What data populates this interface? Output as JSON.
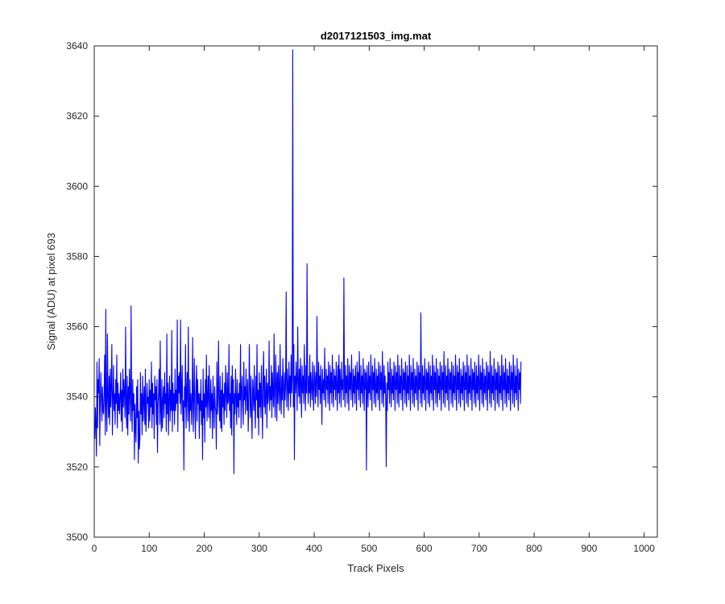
{
  "chart_data": {
    "type": "line",
    "title": "d2017121503_img.mat",
    "xlabel": "Track Pixels",
    "ylabel": "Signal (ADU) at pixel 693",
    "xlim": [
      0,
      1024
    ],
    "ylim": [
      3500,
      3640
    ],
    "xticks": [
      0,
      100,
      200,
      300,
      400,
      500,
      600,
      700,
      800,
      900,
      1000
    ],
    "xtick_labels": [
      "0",
      "100",
      "200",
      "300",
      "400",
      "500",
      "600",
      "700",
      "800",
      "900",
      "1000"
    ],
    "yticks": [
      3500,
      3520,
      3540,
      3560,
      3580,
      3600,
      3620,
      3640
    ],
    "ytick_labels": [
      "3500",
      "3520",
      "3540",
      "3560",
      "3580",
      "3600",
      "3620",
      "3640"
    ],
    "grid": false,
    "series": [
      {
        "color": "#0000ff",
        "x_step": 1,
        "x_start": 1,
        "values": [
          3528,
          3537,
          3532,
          3523,
          3550,
          3531,
          3545,
          3541,
          3551,
          3526,
          3538,
          3547,
          3540,
          3533,
          3543,
          3536,
          3535,
          3541,
          3552,
          3529,
          3565,
          3537,
          3530,
          3558,
          3540,
          3534,
          3546,
          3532,
          3548,
          3537,
          3543,
          3555,
          3529,
          3539,
          3549,
          3536,
          3541,
          3532,
          3545,
          3538,
          3552,
          3531,
          3544,
          3536,
          3541,
          3535,
          3540,
          3547,
          3533,
          3542,
          3530,
          3548,
          3537,
          3545,
          3541,
          3534,
          3560,
          3538,
          3531,
          3546,
          3529,
          3543,
          3535,
          3548,
          3540,
          3533,
          3566,
          3539,
          3530,
          3545,
          3536,
          3541,
          3522,
          3538,
          3531,
          3527,
          3543,
          3534,
          3545,
          3521,
          3536,
          3525,
          3528,
          3547,
          3535,
          3541,
          3529,
          3546,
          3533,
          3539,
          3543,
          3532,
          3548,
          3530,
          3536,
          3544,
          3538,
          3540,
          3531,
          3545,
          3533,
          3542,
          3537,
          3550,
          3531,
          3544,
          3535,
          3541,
          3528,
          3546,
          3539,
          3543,
          3532,
          3545,
          3524,
          3538,
          3541,
          3548,
          3532,
          3556,
          3536,
          3530,
          3545,
          3531,
          3539,
          3543,
          3534,
          3547,
          3538,
          3541,
          3530,
          3558,
          3535,
          3544,
          3529,
          3540,
          3546,
          3533,
          3542,
          3536,
          3559,
          3530,
          3544,
          3536,
          3541,
          3532,
          3548,
          3536,
          3542,
          3538,
          3562,
          3530,
          3546,
          3541,
          3547,
          3538,
          3562,
          3535,
          3541,
          3549,
          3533,
          3539,
          3519,
          3543,
          3537,
          3555,
          3531,
          3541,
          3547,
          3533,
          3560,
          3537,
          3530,
          3545,
          3536,
          3541,
          3532,
          3539,
          3557,
          3530,
          3538,
          3551,
          3536,
          3528,
          3542,
          3549,
          3533,
          3545,
          3538,
          3541,
          3528,
          3541,
          3536,
          3545,
          3532,
          3539,
          3522,
          3548,
          3534,
          3541,
          3527,
          3545,
          3537,
          3552,
          3533,
          3540,
          3546,
          3534,
          3549,
          3539,
          3531,
          3545,
          3536,
          3541,
          3528,
          3546,
          3538,
          3531,
          3543,
          3537,
          3536,
          3525,
          3550,
          3535,
          3540,
          3556,
          3538,
          3533,
          3546,
          3531,
          3542,
          3530,
          3547,
          3537,
          3541,
          3532,
          3544,
          3536,
          3549,
          3541,
          3534,
          3547,
          3538,
          3539,
          3555,
          3536,
          3541,
          3531,
          3546,
          3529,
          3549,
          3538,
          3545,
          3518,
          3541,
          3535,
          3548,
          3540,
          3532,
          3545,
          3537,
          3541,
          3534,
          3544,
          3539,
          3555,
          3531,
          3542,
          3546,
          3537,
          3532,
          3550,
          3539,
          3543,
          3535,
          3548,
          3541,
          3536,
          3545,
          3530,
          3538,
          3555,
          3542,
          3534,
          3546,
          3536,
          3528,
          3545,
          3541,
          3536,
          3549,
          3538,
          3531,
          3546,
          3539,
          3555,
          3534,
          3542,
          3529,
          3547,
          3537,
          3544,
          3534,
          3549,
          3540,
          3528,
          3545,
          3553,
          3537,
          3546,
          3535,
          3541,
          3548,
          3531,
          3544,
          3538,
          3541,
          3556,
          3536,
          3543,
          3539,
          3549,
          3534,
          3547,
          3541,
          3537,
          3558,
          3540,
          3534,
          3552,
          3545,
          3533,
          3547,
          3538,
          3549,
          3542,
          3536,
          3555,
          3541,
          3535,
          3546,
          3539,
          3551,
          3542,
          3534,
          3547,
          3539,
          3544,
          3570,
          3537,
          3548,
          3543,
          3536,
          3550,
          3541,
          3546,
          3537,
          3552,
          3541,
          3545,
          3639,
          3537,
          3555,
          3522,
          3546,
          3541,
          3550,
          3544,
          3536,
          3560,
          3545,
          3540,
          3548,
          3538,
          3551,
          3544,
          3534,
          3549,
          3541,
          3546,
          3538,
          3555,
          3543,
          3536,
          3549,
          3541,
          3578,
          3544,
          3538,
          3546,
          3541,
          3552,
          3537,
          3547,
          3543,
          3539,
          3550,
          3542,
          3536,
          3549,
          3545,
          3538,
          3547,
          3540,
          3563,
          3544,
          3537,
          3550,
          3542,
          3546,
          3538,
          3549,
          3543,
          3532,
          3548,
          3541,
          3545,
          3539,
          3554,
          3543,
          3537,
          3548,
          3542,
          3546,
          3538,
          3550,
          3544,
          3536,
          3549,
          3541,
          3547,
          3538,
          3552,
          3543,
          3537,
          3548,
          3542,
          3546,
          3539,
          3550,
          3543,
          3536,
          3549,
          3541,
          3552,
          3538,
          3548,
          3544,
          3537,
          3550,
          3542,
          3545,
          3539,
          3574,
          3543,
          3537,
          3549,
          3541,
          3546,
          3538,
          3551,
          3544,
          3536,
          3549,
          3542,
          3547,
          3539,
          3552,
          3543,
          3537,
          3548,
          3541,
          3546,
          3538,
          3549,
          3544,
          3536,
          3550,
          3542,
          3547,
          3539,
          3553,
          3543,
          3537,
          3549,
          3541,
          3546,
          3538,
          3551,
          3544,
          3536,
          3548,
          3542,
          3547,
          3519,
          3549,
          3543,
          3537,
          3550,
          3541,
          3546,
          3539,
          3552,
          3544,
          3536,
          3549,
          3542,
          3547,
          3538,
          3551,
          3543,
          3537,
          3548,
          3541,
          3546,
          3539,
          3550,
          3544,
          3536,
          3549,
          3542,
          3547,
          3538,
          3553,
          3543,
          3537,
          3549,
          3541,
          3546,
          3539,
          3520,
          3544,
          3536,
          3550,
          3542,
          3547,
          3538,
          3551,
          3543,
          3537,
          3548,
          3541,
          3546,
          3539,
          3550,
          3544,
          3536,
          3549,
          3542,
          3547,
          3538,
          3552,
          3543,
          3537,
          3549,
          3541,
          3546,
          3539,
          3551,
          3544,
          3536,
          3548,
          3542,
          3547,
          3538,
          3550,
          3543,
          3537,
          3549,
          3541,
          3546,
          3539,
          3552,
          3544,
          3536,
          3549,
          3542,
          3547,
          3538,
          3551,
          3543,
          3537,
          3548,
          3541,
          3546,
          3539,
          3550,
          3544,
          3536,
          3549,
          3542,
          3547,
          3538,
          3564,
          3543,
          3537,
          3549,
          3541,
          3546,
          3539,
          3551,
          3544,
          3536,
          3548,
          3542,
          3547,
          3538,
          3550,
          3543,
          3537,
          3549,
          3541,
          3546,
          3539,
          3552,
          3544,
          3536,
          3549,
          3542,
          3547,
          3538,
          3551,
          3543,
          3537,
          3548,
          3541,
          3546,
          3539,
          3550,
          3544,
          3536,
          3549,
          3542,
          3547,
          3538,
          3553,
          3543,
          3537,
          3549,
          3541,
          3546,
          3539,
          3551,
          3544,
          3536,
          3548,
          3542,
          3547,
          3538,
          3550,
          3543,
          3537,
          3549,
          3541,
          3546,
          3539,
          3552,
          3544,
          3536,
          3549,
          3542,
          3547,
          3538,
          3551,
          3543,
          3537,
          3548,
          3541,
          3546,
          3539,
          3550,
          3544,
          3536,
          3549,
          3542,
          3547,
          3538,
          3552,
          3543,
          3537,
          3549,
          3541,
          3546,
          3539,
          3551,
          3544,
          3536,
          3548,
          3542,
          3547,
          3538,
          3550,
          3543,
          3537,
          3549,
          3541,
          3546,
          3539,
          3552,
          3544,
          3536,
          3549,
          3542,
          3547,
          3538,
          3551,
          3543,
          3537,
          3548,
          3541,
          3546,
          3539,
          3550,
          3544,
          3536,
          3549,
          3542,
          3547,
          3538,
          3553,
          3543,
          3537,
          3549,
          3541,
          3546,
          3539,
          3551,
          3544,
          3536,
          3548,
          3542,
          3547,
          3538,
          3550,
          3543,
          3537,
          3549,
          3541,
          3546,
          3539,
          3552,
          3544,
          3536,
          3549,
          3542,
          3547,
          3538,
          3551,
          3543,
          3537,
          3548,
          3541,
          3546,
          3539,
          3550,
          3544,
          3536,
          3549,
          3542,
          3547,
          3538,
          3552,
          3543,
          3537,
          3549,
          3541,
          3546,
          3539,
          3551,
          3544,
          3536,
          3548,
          3542,
          3547,
          3538,
          3550
        ]
      }
    ]
  }
}
